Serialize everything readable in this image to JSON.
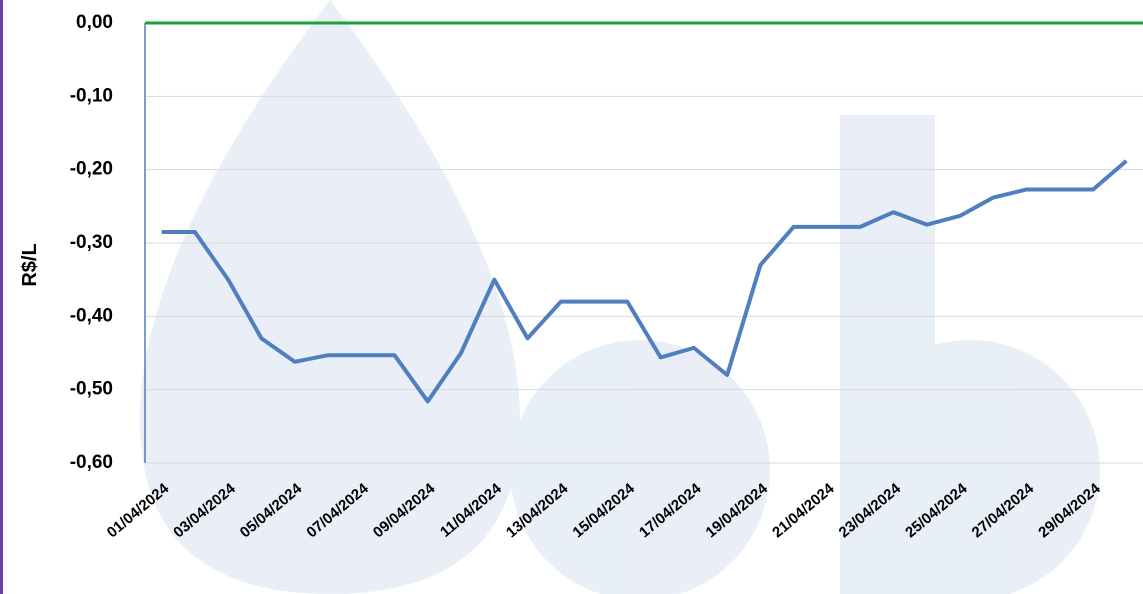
{
  "chart_data": {
    "type": "line",
    "y_label": "R$/L",
    "categories": [
      "01/04/2024",
      null,
      "03/04/2024",
      null,
      "05/04/2024",
      null,
      "07/04/2024",
      null,
      "09/04/2024",
      null,
      "11/04/2024",
      null,
      "13/04/2024",
      null,
      "15/04/2024",
      null,
      "17/04/2024",
      null,
      "19/04/2024",
      null,
      "21/04/2024",
      null,
      "23/04/2024",
      null,
      "25/04/2024",
      null,
      "27/04/2024",
      null,
      "29/04/2024",
      null
    ],
    "series": [
      {
        "color": "#4f7fbf",
        "values": [
          -0.285,
          -0.285,
          -0.35,
          -0.43,
          -0.462,
          -0.453,
          -0.453,
          -0.453,
          -0.516,
          -0.45,
          -0.35,
          -0.43,
          -0.38,
          -0.38,
          -0.38,
          -0.456,
          -0.443,
          -0.48,
          -0.33,
          -0.278,
          -0.278,
          -0.278,
          -0.258,
          -0.275,
          -0.263,
          -0.238,
          -0.227,
          -0.227,
          -0.227,
          -0.188
        ]
      }
    ],
    "ylim": [
      -0.6,
      0
    ],
    "yticks": [
      {
        "value": 0,
        "label": "0,00"
      },
      {
        "value": -0.1,
        "label": "-0,10"
      },
      {
        "value": -0.2,
        "label": "-0,20"
      },
      {
        "value": -0.3,
        "label": "-0,30"
      },
      {
        "value": -0.4,
        "label": "-0,40"
      },
      {
        "value": -0.5,
        "label": "-0,50"
      },
      {
        "value": -0.6,
        "label": "-0,60"
      }
    ],
    "grid": true,
    "zero_line_color": "#1aa33a"
  }
}
